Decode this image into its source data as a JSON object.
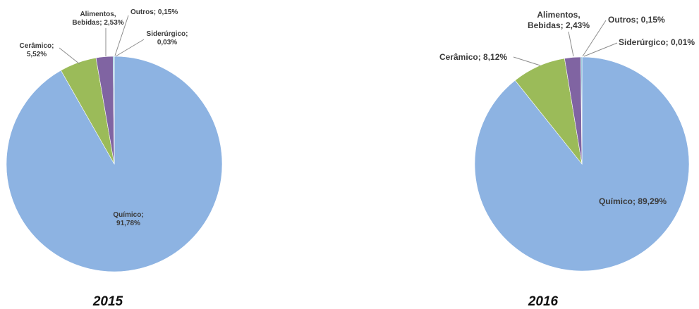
{
  "colors": {
    "Químico": "#8db3e2",
    "Cerâmico": "#9bbb59",
    "Alimentos, Bebidas": "#8064a2",
    "Outros": "#4bacc6",
    "Siderúrgico": "#c0504d"
  },
  "chart_data": [
    {
      "type": "pie",
      "year_label": "2015",
      "slices": [
        {
          "name": "Químico",
          "value": 91.78,
          "label_lines": [
            "Químico;",
            "91,78%"
          ]
        },
        {
          "name": "Cerâmico",
          "value": 5.52,
          "label_lines": [
            "Cerâmico;",
            "5,52%"
          ]
        },
        {
          "name": "Alimentos, Bebidas",
          "value": 2.53,
          "label_lines": [
            "Alimentos,",
            "Bebidas; 2,53%"
          ]
        },
        {
          "name": "Outros",
          "value": 0.15,
          "label_lines": [
            "Outros; 0,15%"
          ]
        },
        {
          "name": "Siderúrgico",
          "value": 0.03,
          "label_lines": [
            "Siderúrgico;",
            "0,03%"
          ]
        }
      ]
    },
    {
      "type": "pie",
      "year_label": "2016",
      "slices": [
        {
          "name": "Químico",
          "value": 89.29,
          "label_lines": [
            "Químico; 89,29%"
          ]
        },
        {
          "name": "Cerâmico",
          "value": 8.12,
          "label_lines": [
            "Cerâmico; 8,12%"
          ]
        },
        {
          "name": "Alimentos, Bebidas",
          "value": 2.43,
          "label_lines": [
            "Alimentos,",
            "Bebidas; 2,43%"
          ]
        },
        {
          "name": "Outros",
          "value": 0.15,
          "label_lines": [
            "Outros; 0,15%"
          ]
        },
        {
          "name": "Siderúrgico",
          "value": 0.01,
          "label_lines": [
            "Siderúrgico; 0,01%"
          ]
        }
      ]
    }
  ]
}
